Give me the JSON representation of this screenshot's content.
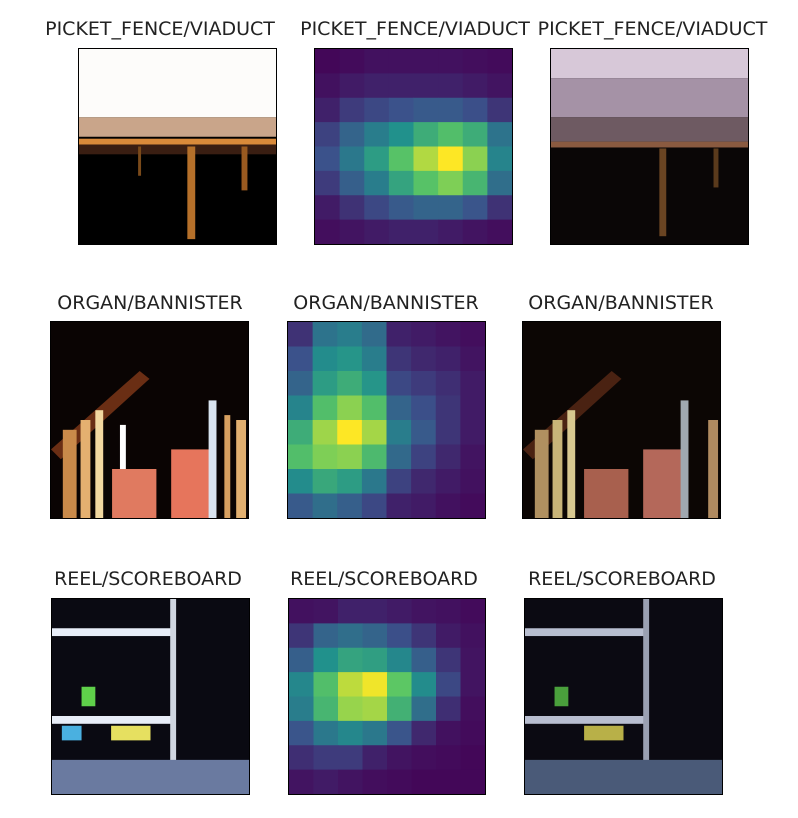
{
  "rows": [
    {
      "label": "PICKET_FENCE/VIADUCT",
      "titles": [
        "PICKET_FENCE/VIADUCT",
        "PICKET_FENCE/VIADUCT",
        "PICKET_FENCE/VIADUCT"
      ]
    },
    {
      "label": "ORGAN/BANNISTER",
      "titles": [
        "ORGAN/BANNISTER",
        "ORGAN/BANNISTER",
        "ORGAN/BANNISTER"
      ]
    },
    {
      "label": "REEL/SCOREBOARD",
      "titles": [
        "REEL/SCOREBOARD",
        "REEL/SCOREBOARD",
        "REEL/SCOREBOARD"
      ]
    }
  ],
  "chart_data": [
    {
      "type": "heatmap",
      "title": "PICKET_FENCE/VIADUCT",
      "values": [
        [
          0.02,
          0.03,
          0.05,
          0.05,
          0.05,
          0.05,
          0.04,
          0.03
        ],
        [
          0.05,
          0.08,
          0.1,
          0.1,
          0.1,
          0.1,
          0.08,
          0.06
        ],
        [
          0.1,
          0.18,
          0.22,
          0.25,
          0.28,
          0.28,
          0.24,
          0.16
        ],
        [
          0.2,
          0.32,
          0.42,
          0.5,
          0.62,
          0.7,
          0.62,
          0.38
        ],
        [
          0.25,
          0.4,
          0.55,
          0.72,
          0.88,
          1.0,
          0.82,
          0.45
        ],
        [
          0.18,
          0.3,
          0.42,
          0.58,
          0.72,
          0.8,
          0.66,
          0.36
        ],
        [
          0.08,
          0.15,
          0.22,
          0.28,
          0.32,
          0.32,
          0.26,
          0.15
        ],
        [
          0.04,
          0.06,
          0.08,
          0.1,
          0.1,
          0.08,
          0.06,
          0.04
        ]
      ]
    },
    {
      "type": "heatmap",
      "title": "ORGAN/BANNISTER",
      "values": [
        [
          0.15,
          0.38,
          0.42,
          0.35,
          0.1,
          0.08,
          0.06,
          0.04
        ],
        [
          0.25,
          0.48,
          0.52,
          0.42,
          0.16,
          0.12,
          0.1,
          0.06
        ],
        [
          0.32,
          0.55,
          0.62,
          0.52,
          0.22,
          0.18,
          0.14,
          0.08
        ],
        [
          0.45,
          0.7,
          0.82,
          0.7,
          0.32,
          0.24,
          0.16,
          0.08
        ],
        [
          0.62,
          0.85,
          1.0,
          0.86,
          0.42,
          0.28,
          0.16,
          0.08
        ],
        [
          0.7,
          0.8,
          0.82,
          0.68,
          0.34,
          0.2,
          0.12,
          0.06
        ],
        [
          0.48,
          0.6,
          0.55,
          0.4,
          0.2,
          0.12,
          0.08,
          0.05
        ],
        [
          0.28,
          0.36,
          0.3,
          0.22,
          0.1,
          0.08,
          0.05,
          0.03
        ]
      ]
    },
    {
      "type": "heatmap",
      "title": "REEL/SCOREBOARD",
      "values": [
        [
          0.05,
          0.06,
          0.1,
          0.1,
          0.08,
          0.06,
          0.05,
          0.03
        ],
        [
          0.16,
          0.32,
          0.36,
          0.32,
          0.24,
          0.16,
          0.08,
          0.05
        ],
        [
          0.3,
          0.5,
          0.58,
          0.56,
          0.46,
          0.3,
          0.16,
          0.06
        ],
        [
          0.46,
          0.7,
          0.9,
          0.98,
          0.74,
          0.48,
          0.22,
          0.06
        ],
        [
          0.42,
          0.66,
          0.84,
          0.86,
          0.64,
          0.36,
          0.14,
          0.04
        ],
        [
          0.26,
          0.4,
          0.46,
          0.4,
          0.26,
          0.12,
          0.05,
          0.03
        ],
        [
          0.14,
          0.18,
          0.18,
          0.1,
          0.06,
          0.04,
          0.03,
          0.02
        ],
        [
          0.06,
          0.08,
          0.06,
          0.04,
          0.03,
          0.02,
          0.02,
          0.02
        ]
      ]
    }
  ]
}
